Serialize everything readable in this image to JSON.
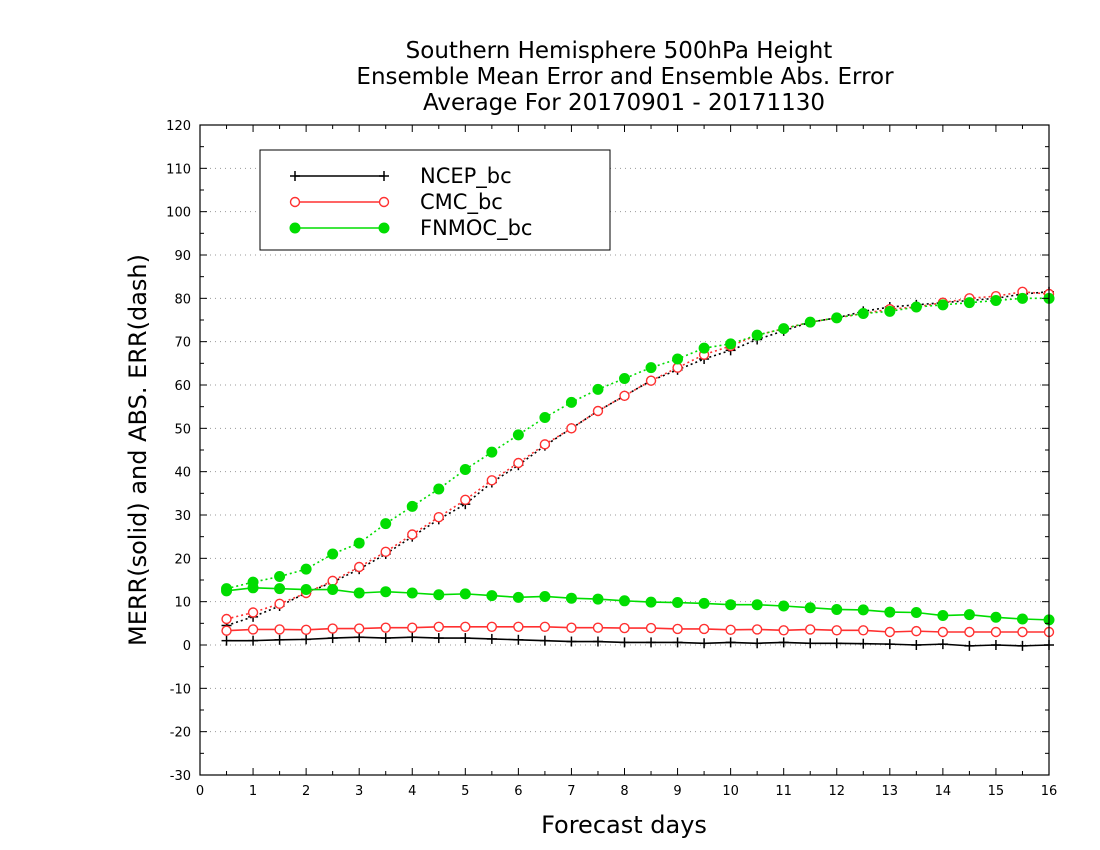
{
  "chart_data": {
    "type": "line",
    "title": [
      "Southern Hemisphere 500hPa Height",
      "Ensemble Mean Error and Ensemble Abs. Error",
      "Average For 20170901 - 20171130"
    ],
    "xlabel": "Forecast days",
    "ylabel": "MERR(solid) and ABS. ERR(dash)",
    "xlim": [
      0,
      16
    ],
    "ylim": [
      -30,
      120
    ],
    "xticks": [
      0,
      1,
      2,
      3,
      4,
      5,
      6,
      7,
      8,
      9,
      10,
      11,
      12,
      13,
      14,
      15,
      16
    ],
    "yticks": [
      -30,
      -20,
      -10,
      0,
      10,
      20,
      30,
      40,
      50,
      60,
      70,
      80,
      90,
      100,
      110,
      120
    ],
    "grid": true,
    "legend_position": "top-left",
    "x": [
      0.5,
      1,
      1.5,
      2,
      2.5,
      3,
      3.5,
      4,
      4.5,
      5,
      5.5,
      6,
      6.5,
      7,
      7.5,
      8,
      8.5,
      9,
      9.5,
      10,
      10.5,
      11,
      11.5,
      12,
      12.5,
      13,
      13.5,
      14,
      14.5,
      15,
      15.5,
      16
    ],
    "series": [
      {
        "name": "NCEP_bc",
        "color": "#000000",
        "marker": "plus",
        "merr": [
          1.0,
          1.0,
          1.2,
          1.3,
          1.6,
          1.8,
          1.6,
          1.8,
          1.6,
          1.6,
          1.4,
          1.2,
          1.0,
          0.8,
          0.8,
          0.6,
          0.6,
          0.6,
          0.4,
          0.6,
          0.4,
          0.6,
          0.4,
          0.4,
          0.3,
          0.2,
          0.0,
          0.2,
          -0.2,
          0.0,
          -0.2,
          0.0
        ],
        "abs_err": [
          4.5,
          6.5,
          9.0,
          12.0,
          14.5,
          17.5,
          21.0,
          25.0,
          29.0,
          32.5,
          37.5,
          41.5,
          46.0,
          50.0,
          54.0,
          57.5,
          61.0,
          63.5,
          66.0,
          68.0,
          70.5,
          72.5,
          74.5,
          75.5,
          77.0,
          78.0,
          78.5,
          79.0,
          79.5,
          80.0,
          81.0,
          81.5
        ]
      },
      {
        "name": "CMC_bc",
        "color": "#ff3030",
        "marker": "open-circle",
        "merr": [
          3.3,
          3.6,
          3.6,
          3.5,
          3.8,
          3.8,
          4.0,
          4.0,
          4.2,
          4.2,
          4.2,
          4.2,
          4.2,
          4.0,
          4.0,
          3.9,
          3.9,
          3.7,
          3.7,
          3.5,
          3.6,
          3.4,
          3.6,
          3.4,
          3.4,
          3.0,
          3.2,
          3.0,
          3.0,
          3.0,
          3.0,
          3.0
        ],
        "abs_err": [
          6.0,
          7.5,
          9.5,
          12.0,
          14.8,
          18.0,
          21.5,
          25.5,
          29.5,
          33.5,
          38.0,
          42.0,
          46.3,
          50.0,
          54.0,
          57.5,
          61.0,
          64.0,
          67.0,
          69.0,
          71.5,
          73.0,
          74.5,
          75.5,
          76.5,
          77.5,
          78.0,
          79.0,
          80.0,
          80.5,
          81.5,
          81.0
        ]
      },
      {
        "name": "FNMOC_bc",
        "color": "#00dd00",
        "marker": "filled-circle",
        "merr": [
          12.5,
          13.2,
          13.0,
          12.8,
          12.8,
          12.0,
          12.3,
          12.0,
          11.6,
          11.8,
          11.4,
          11.0,
          11.2,
          10.8,
          10.6,
          10.2,
          9.9,
          9.8,
          9.6,
          9.3,
          9.3,
          9.0,
          8.6,
          8.2,
          8.1,
          7.6,
          7.5,
          6.8,
          7.0,
          6.4,
          6.0,
          5.8
        ],
        "abs_err": [
          13.0,
          14.5,
          15.8,
          17.5,
          21.0,
          23.5,
          28.0,
          32.0,
          36.0,
          40.5,
          44.5,
          48.5,
          52.5,
          56.0,
          59.0,
          61.5,
          64.0,
          66.0,
          68.5,
          69.5,
          71.5,
          73.0,
          74.5,
          75.5,
          76.5,
          77.0,
          78.0,
          78.5,
          79.0,
          79.5,
          80.0,
          80.0
        ]
      }
    ]
  }
}
